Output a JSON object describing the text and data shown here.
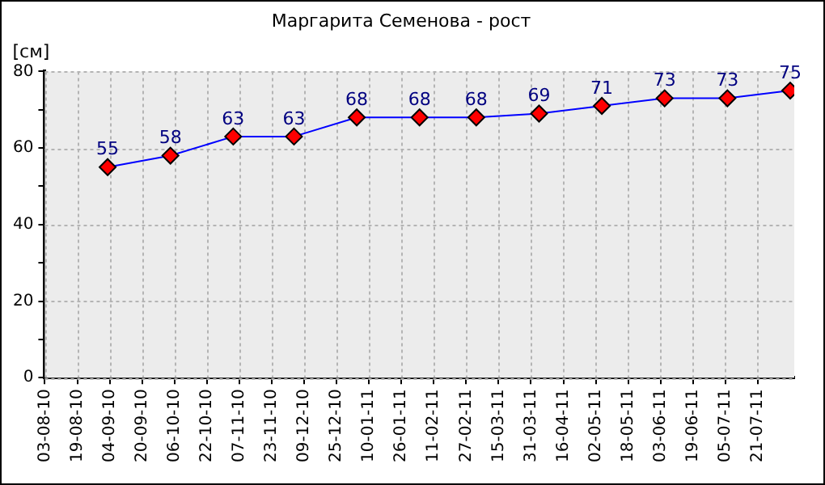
{
  "chart_data": {
    "type": "line",
    "title": "Маргарита Семенова - рост",
    "ylabel": "[см]",
    "x": [
      "2010-09-03",
      "2010-10-04",
      "2010-11-04",
      "2010-12-04",
      "2011-01-04",
      "2011-02-04",
      "2011-03-04",
      "2011-04-04",
      "2011-05-05",
      "2011-06-05",
      "2011-07-06",
      "2011-08-06"
    ],
    "series": [
      {
        "color": "#0000ff",
        "colors": [
          "#ff0000",
          "#ff0000",
          "#ff0000",
          "#ff0000",
          "#ff0000",
          "#ff0000",
          "#ff0000",
          "#ff0000",
          "#ff0000",
          "#ff0000",
          "#ff0000",
          "#ff0000"
        ],
        "values": [
          55,
          58,
          63,
          63,
          68,
          68,
          68,
          69,
          71,
          73,
          73,
          75
        ]
      }
    ],
    "xlim": [
      "2010-08-03",
      "2011-08-08"
    ],
    "xticks": [
      {
        "value": "2010-08-03",
        "label": "03-08-10"
      },
      {
        "value": "2010-08-19",
        "label": "19-08-10"
      },
      {
        "value": "2010-09-04",
        "label": "04-09-10"
      },
      {
        "value": "2010-09-20",
        "label": "20-09-10"
      },
      {
        "value": "2010-10-06",
        "label": "06-10-10"
      },
      {
        "value": "2010-10-22",
        "label": "22-10-10"
      },
      {
        "value": "2010-11-07",
        "label": "07-11-10"
      },
      {
        "value": "2010-11-23",
        "label": "23-11-10"
      },
      {
        "value": "2010-12-09",
        "label": "09-12-10"
      },
      {
        "value": "2010-12-25",
        "label": "25-12-10"
      },
      {
        "value": "2011-01-10",
        "label": "10-01-11"
      },
      {
        "value": "2011-01-26",
        "label": "26-01-11"
      },
      {
        "value": "2011-02-11",
        "label": "11-02-11"
      },
      {
        "value": "2011-02-27",
        "label": "27-02-11"
      },
      {
        "value": "2011-03-15",
        "label": "15-03-11"
      },
      {
        "value": "2011-03-31",
        "label": "31-03-11"
      },
      {
        "value": "2011-04-16",
        "label": "16-04-11"
      },
      {
        "value": "2011-05-02",
        "label": "02-05-11"
      },
      {
        "value": "2011-05-18",
        "label": "18-05-11"
      },
      {
        "value": "2011-06-03",
        "label": "03-06-11"
      },
      {
        "value": "2011-06-19",
        "label": "19-06-11"
      },
      {
        "value": "2011-07-05",
        "label": "05-07-11"
      },
      {
        "value": "2011-07-21",
        "label": "21-07-11"
      }
    ],
    "ylim": [
      0,
      80
    ],
    "yticks": [
      0,
      {
        "value": 10,
        "label": null
      },
      20,
      {
        "value": 30,
        "label": null
      },
      40,
      {
        "value": 50,
        "label": null
      },
      60,
      {
        "value": 70,
        "label": null
      },
      80
    ],
    "marker": "diamond",
    "line_style": "solid",
    "grid": true,
    "data_labels": true
  }
}
